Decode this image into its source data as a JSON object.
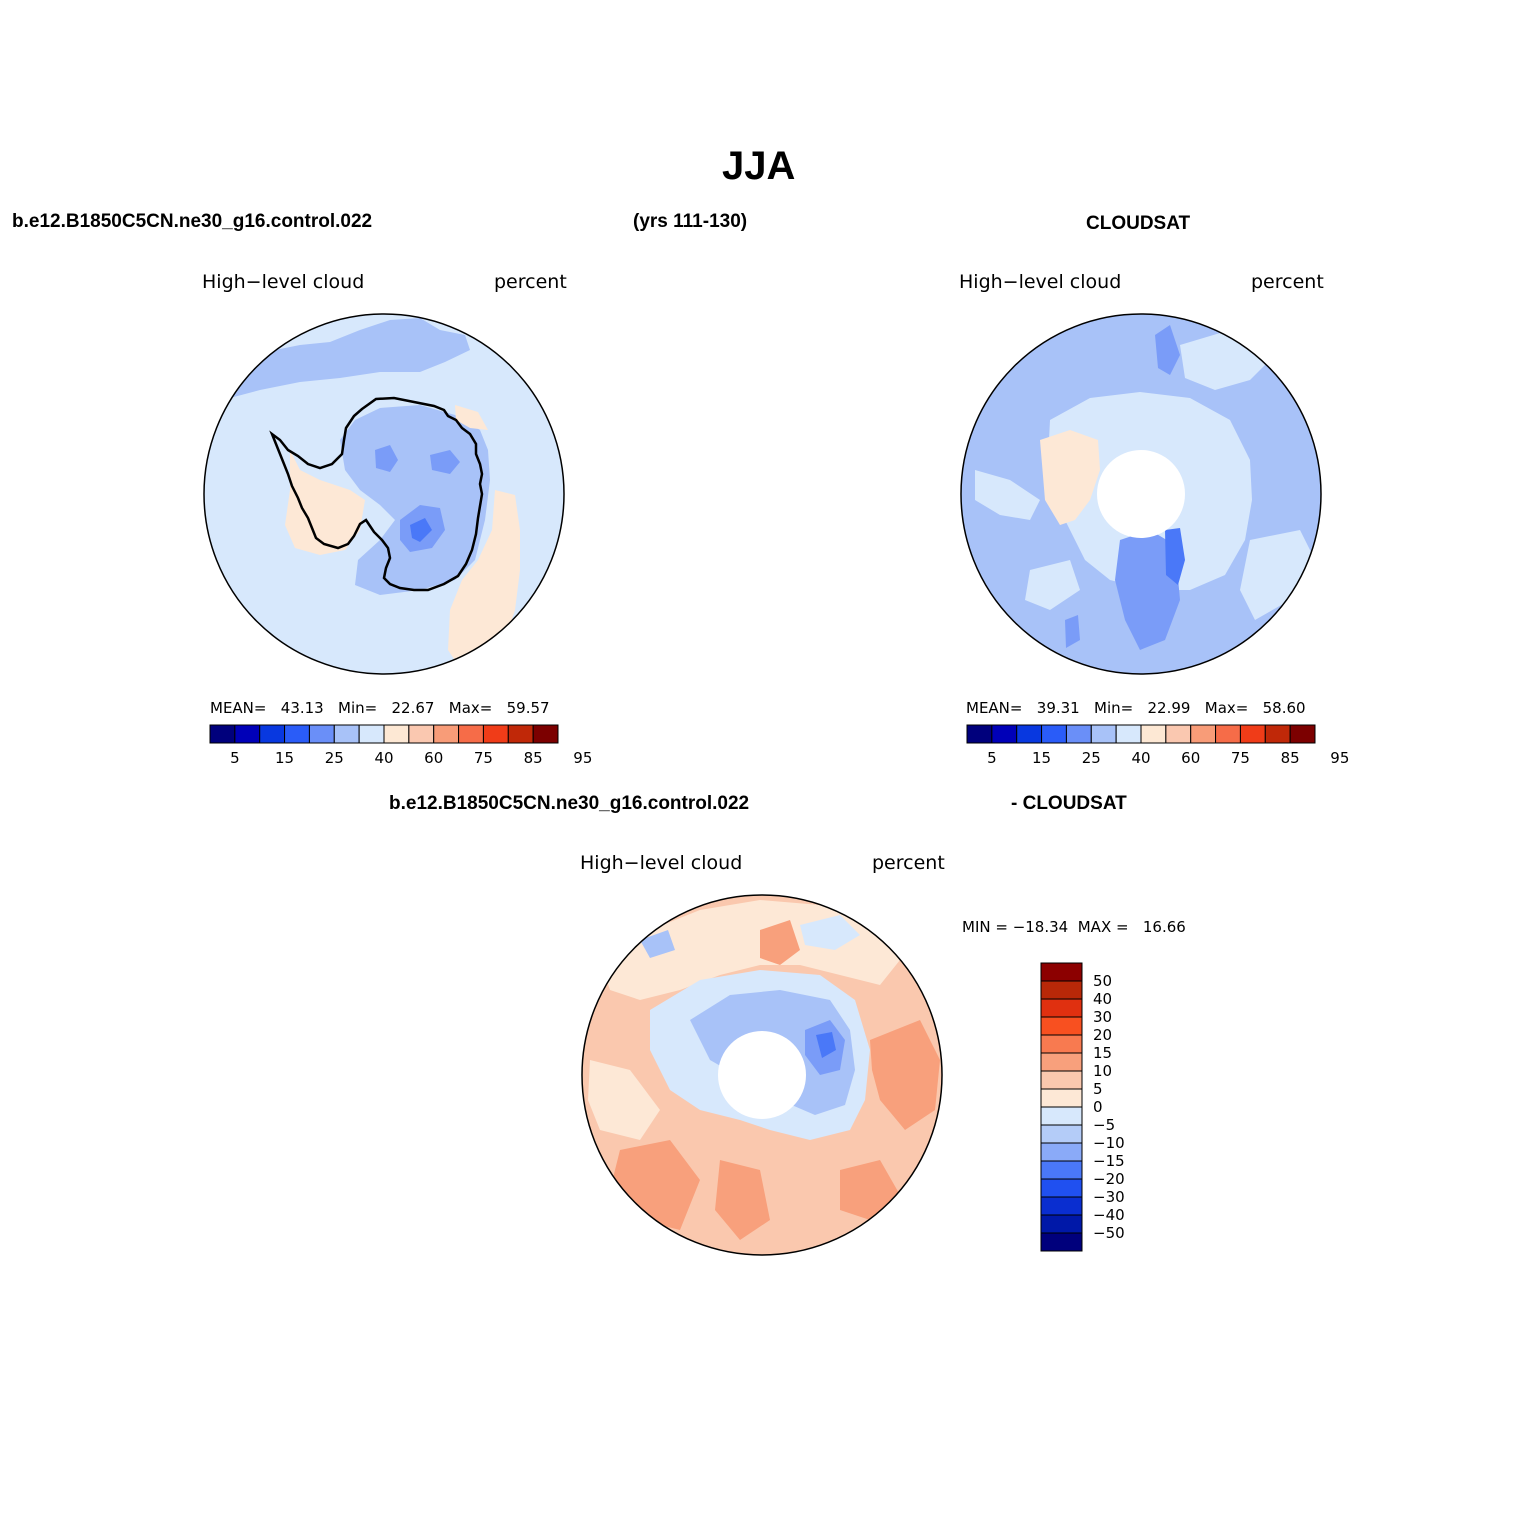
{
  "main_title": "JJA",
  "case_name": "b.e12.B1850C5CN.ne30_g16.control.022",
  "years": "(yrs 111-130)",
  "obs_name": "CLOUDSAT",
  "diff_case_name": "b.e12.B1850C5CN.ne30_g16.control.022",
  "diff_obs_name": "- CLOUDSAT",
  "panels": {
    "model": {
      "variable": "High−level cloud",
      "units": "percent",
      "stats_text": "MEAN=   43.13   Min=   22.67   Max=   59.57"
    },
    "obs": {
      "variable": "High−level cloud",
      "units": "percent",
      "stats_text": "MEAN=   39.31   Min=   22.99   Max=   58.60"
    },
    "diff": {
      "variable": "High−level cloud",
      "units": "percent",
      "stats_text": "MIN = −18.34  MAX =   16.66"
    }
  },
  "colorbar_abs": {
    "labels": [
      "5",
      "15",
      "25",
      "40",
      "60",
      "75",
      "85",
      "95"
    ],
    "colors": [
      "#00007c",
      "#0000b8",
      "#0838e0",
      "#2a5cf8",
      "#6a8ff8",
      "#a8c2f8",
      "#d7e8fc",
      "#fde8d4",
      "#fac8b0",
      "#f89c78",
      "#f66c48",
      "#f03c18",
      "#c02808",
      "#7c0000"
    ]
  },
  "colorbar_diff": {
    "labels": [
      "50",
      "40",
      "30",
      "20",
      "15",
      "10",
      "5",
      "0",
      "−5",
      "−10",
      "−15",
      "−20",
      "−30",
      "−40",
      "−50"
    ],
    "colors": [
      "#8c0000",
      "#b82808",
      "#e03010",
      "#f85020",
      "#f87a50",
      "#f8a07c",
      "#fac8ae",
      "#fde8d6",
      "#d7e8fc",
      "#b4ccf8",
      "#8aaaf8",
      "#4a78f8",
      "#2050f0",
      "#0a2ed0",
      "#0018a8",
      "#00007c"
    ]
  },
  "map_colors": {
    "light_blue": "#d7e8fc",
    "mid_blue": "#a8c2f8",
    "blue": "#7a9cf8",
    "deep_blue": "#4a78f8",
    "light_salmon": "#fde8d6",
    "salmon": "#fac8ae",
    "orange": "#f8a07c"
  }
}
